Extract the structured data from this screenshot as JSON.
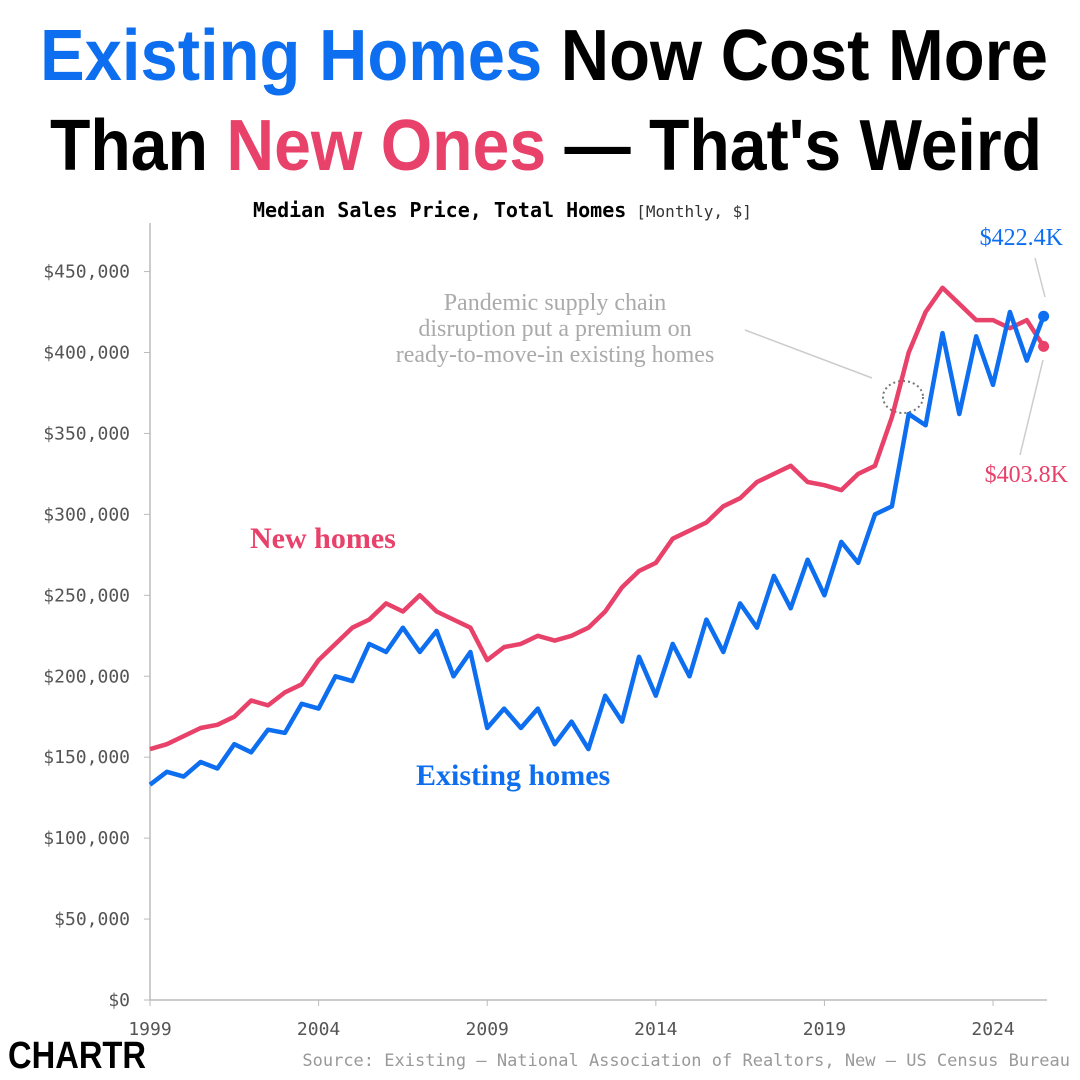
{
  "chart_data": {
    "type": "line",
    "title_parts": [
      {
        "text": "Existing Homes",
        "color": "#0d6fef"
      },
      {
        "text": " Now Cost More",
        "color": "#000000"
      },
      {
        "text": "Than ",
        "color": "#000000"
      },
      {
        "text": "New Ones",
        "color": "#e8416a"
      },
      {
        "text": " — That's Weird",
        "color": "#000000"
      }
    ],
    "subtitle": "Median Sales Price, Total Homes",
    "subtitle_note": "[Monthly, $]",
    "annotation": [
      "Pandemic supply chain",
      "disruption put a premium on",
      "ready-to-move-in existing homes"
    ],
    "source": "Source: Existing — National Association of Realtors, New — US Census Bureau",
    "logo": "CHARTR",
    "x": [
      1999,
      1999.5,
      2000,
      2000.5,
      2001,
      2001.5,
      2002,
      2002.5,
      2003,
      2003.5,
      2004,
      2004.5,
      2005,
      2005.5,
      2006,
      2006.5,
      2007,
      2007.5,
      2008,
      2008.5,
      2009,
      2009.5,
      2010,
      2010.5,
      2011,
      2011.5,
      2012,
      2012.5,
      2013,
      2013.5,
      2014,
      2014.5,
      2015,
      2015.5,
      2016,
      2016.5,
      2017,
      2017.5,
      2018,
      2018.5,
      2019,
      2019.5,
      2020,
      2020.5,
      2021,
      2021.5,
      2022,
      2022.5,
      2023,
      2023.5,
      2024,
      2024.5,
      2025,
      2025.5
    ],
    "series": [
      {
        "name": "New homes",
        "color": "#e8416a",
        "end_label": "$403.8K",
        "values": [
          155000,
          158000,
          163000,
          168000,
          170000,
          175000,
          185000,
          182000,
          190000,
          195000,
          210000,
          220000,
          230000,
          235000,
          245000,
          240000,
          250000,
          240000,
          235000,
          230000,
          210000,
          218000,
          220000,
          225000,
          222000,
          225000,
          230000,
          240000,
          255000,
          265000,
          270000,
          285000,
          290000,
          295000,
          305000,
          310000,
          320000,
          325000,
          330000,
          320000,
          318000,
          315000,
          325000,
          330000,
          360000,
          400000,
          425000,
          440000,
          430000,
          420000,
          420000,
          415000,
          420000,
          403800
        ]
      },
      {
        "name": "Existing homes",
        "color": "#0d6fef",
        "end_label": "$422.4K",
        "values": [
          133000,
          141000,
          138000,
          147000,
          143000,
          158000,
          153000,
          167000,
          165000,
          183000,
          180000,
          200000,
          197000,
          220000,
          215000,
          230000,
          215000,
          228000,
          200000,
          215000,
          168000,
          180000,
          168000,
          180000,
          158000,
          172000,
          155000,
          188000,
          172000,
          212000,
          188000,
          220000,
          200000,
          235000,
          215000,
          245000,
          230000,
          262000,
          242000,
          272000,
          250000,
          283000,
          270000,
          300000,
          305000,
          362000,
          355000,
          412000,
          362000,
          410000,
          380000,
          425000,
          395000,
          422400
        ]
      }
    ],
    "xlim": [
      1999,
      2025.6
    ],
    "xticks": [
      1999,
      2004,
      2009,
      2014,
      2019,
      2024
    ],
    "ylim": [
      0,
      480000
    ],
    "yticks": [
      {
        "value": 0,
        "label": "$0"
      },
      {
        "value": 50000,
        "label": "$50,000"
      },
      {
        "value": 100000,
        "label": "$100,000"
      },
      {
        "value": 150000,
        "label": "$150,000"
      },
      {
        "value": 200000,
        "label": "$200,000"
      },
      {
        "value": 250000,
        "label": "$250,000"
      },
      {
        "value": 300000,
        "label": "$300,000"
      },
      {
        "value": 350000,
        "label": "$350,000"
      },
      {
        "value": 400000,
        "label": "$400,000"
      },
      {
        "value": 450000,
        "label": "$450,000"
      }
    ],
    "grid": false
  }
}
